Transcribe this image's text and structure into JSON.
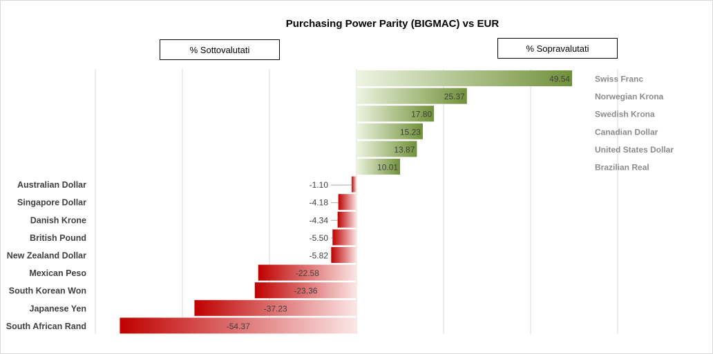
{
  "chart_data": {
    "type": "bar",
    "orientation": "horizontal",
    "title": "Purchasing Power Parity (BIGMAC) vs EUR",
    "legend_boxes": [
      "% Sottovalutati",
      "% Sopravalutati"
    ],
    "xlim": [
      -68,
      77
    ],
    "grid": true,
    "colors": {
      "positive": "#70913a",
      "negative": "#c00000"
    },
    "categories": [
      "Swiss Franc",
      "Norwegian Krona",
      "Swedish Krona",
      "Canadian Dollar",
      "United States Dollar",
      "Brazilian Real",
      "Australian Dollar",
      "Singapore Dollar",
      "Danish Krone",
      "British Pound",
      "New Zealand Dollar",
      "Mexican Peso",
      "South Korean Won",
      "Japanese Yen",
      "South African Rand"
    ],
    "values": [
      49.54,
      25.37,
      17.8,
      15.23,
      13.87,
      10.01,
      -1.1,
      -4.18,
      -4.34,
      -5.5,
      -5.82,
      -22.58,
      -23.36,
      -37.23,
      -54.37
    ],
    "labels": [
      "49.54",
      "25.37",
      "17.80",
      "15.23",
      "13.87",
      "10.01",
      "-1.10",
      "-4.18",
      "-4.34",
      "-5.50",
      "-5.82",
      "-22.58",
      "-23.36",
      "-37.23",
      "-54.37"
    ]
  }
}
